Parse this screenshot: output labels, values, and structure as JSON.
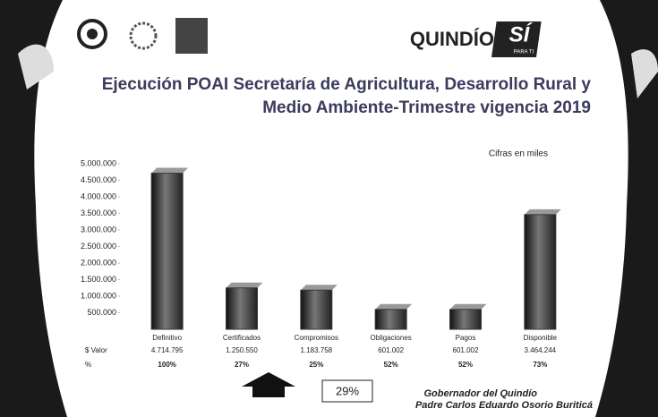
{
  "header": {
    "logo_text": "QUINDÍO",
    "logo_badge": "SÍ",
    "logo_tagline": "PARA TI"
  },
  "chart_data": {
    "type": "bar",
    "title": "Ejecución POAI Secretaría de Agricultura, Desarrollo Rural y Medio Ambiente-Trimestre vigencia 2019",
    "note": "Cifras en miles",
    "categories": [
      "Definitivo",
      "Certificados",
      "Compromisos",
      "Obligaciones",
      "Pagos",
      "Disponible"
    ],
    "values": [
      4714795,
      1250550,
      1183758,
      601002,
      601002,
      3464244
    ],
    "value_labels": [
      "4.714.795",
      "1.250.550",
      "1.183.758",
      "601.002",
      "601.002",
      "3.464.244"
    ],
    "row_labels": [
      "$ Valor",
      "%"
    ],
    "percent_labels": [
      "100%",
      "27%",
      "25%",
      "52%",
      "52%",
      "73%"
    ],
    "color": "#3a3a3a",
    "ylim": [
      0,
      5000000
    ],
    "yticks": [
      {
        "value": 500000,
        "label": "500.000"
      },
      {
        "value": 1000000,
        "label": "1.000.000"
      },
      {
        "value": 1500000,
        "label": "1.500.000"
      },
      {
        "value": 2000000,
        "label": "2.000.000"
      },
      {
        "value": 2500000,
        "label": "2.500.000"
      },
      {
        "value": 3000000,
        "label": "3.000.000"
      },
      {
        "value": 3500000,
        "label": "3.500.000"
      },
      {
        "value": 4000000,
        "label": "4.000.000"
      },
      {
        "value": 4500000,
        "label": "4.500.000"
      },
      {
        "value": 5000000,
        "label": "5.000.000"
      }
    ]
  },
  "highlight": "29%",
  "footer": [
    "Gobernador del Quindío",
    "Padre Carlos Eduardo Osorio Buriticá"
  ]
}
